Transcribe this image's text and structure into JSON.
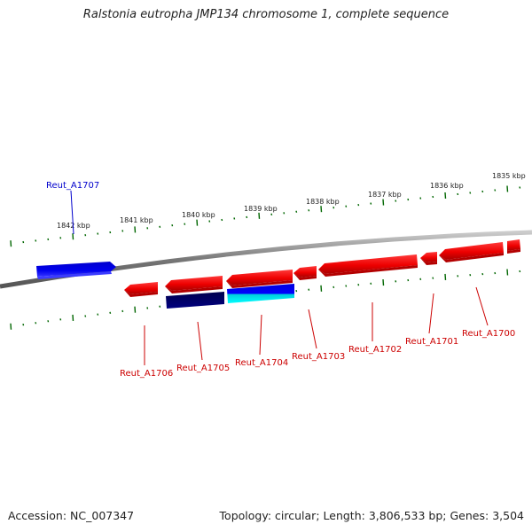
{
  "title": "Ralstonia eutropha JMP134 chromosome 1, complete sequence",
  "footer": {
    "accession_label": "Accession:",
    "accession": "NC_007347",
    "topology_label": "Topology:",
    "topology": "circular",
    "length_label": "Length:",
    "length": "3,806,533 bp",
    "genes_label": "Genes:",
    "genes": "3,504"
  },
  "scale_labels": [
    "1842 kbp",
    "1841 kbp",
    "1840 kbp",
    "1839 kbp",
    "1838 kbp",
    "1837 kbp",
    "1836 kbp",
    "1835 kbp"
  ],
  "genes": [
    {
      "id": "Reut_A1707",
      "strand": "forward",
      "color": "#0000ee"
    },
    {
      "id": "Reut_A1706",
      "strand": "reverse",
      "color": "#ee0000"
    },
    {
      "id": "Reut_A1705",
      "strand": "reverse",
      "color": "#ee0000"
    },
    {
      "id": "Reut_A1704",
      "strand": "reverse",
      "color": "#ee0000"
    },
    {
      "id": "Reut_A1703",
      "strand": "reverse",
      "color": "#ee0000"
    },
    {
      "id": "Reut_A1702",
      "strand": "reverse",
      "color": "#ee0000"
    },
    {
      "id": "Reut_A1701",
      "strand": "reverse",
      "color": "#ee0000"
    },
    {
      "id": "Reut_A1700",
      "strand": "reverse",
      "color": "#ee0000"
    }
  ],
  "colors": {
    "forward_gene": "#0000ee",
    "reverse_gene": "#ee0000",
    "forward_label": "#0000cc",
    "reverse_label": "#cc0000",
    "backbone": "#888888",
    "ticks": "#006600",
    "feature_navy": "#000066",
    "feature_cyan": "#00dddd"
  }
}
